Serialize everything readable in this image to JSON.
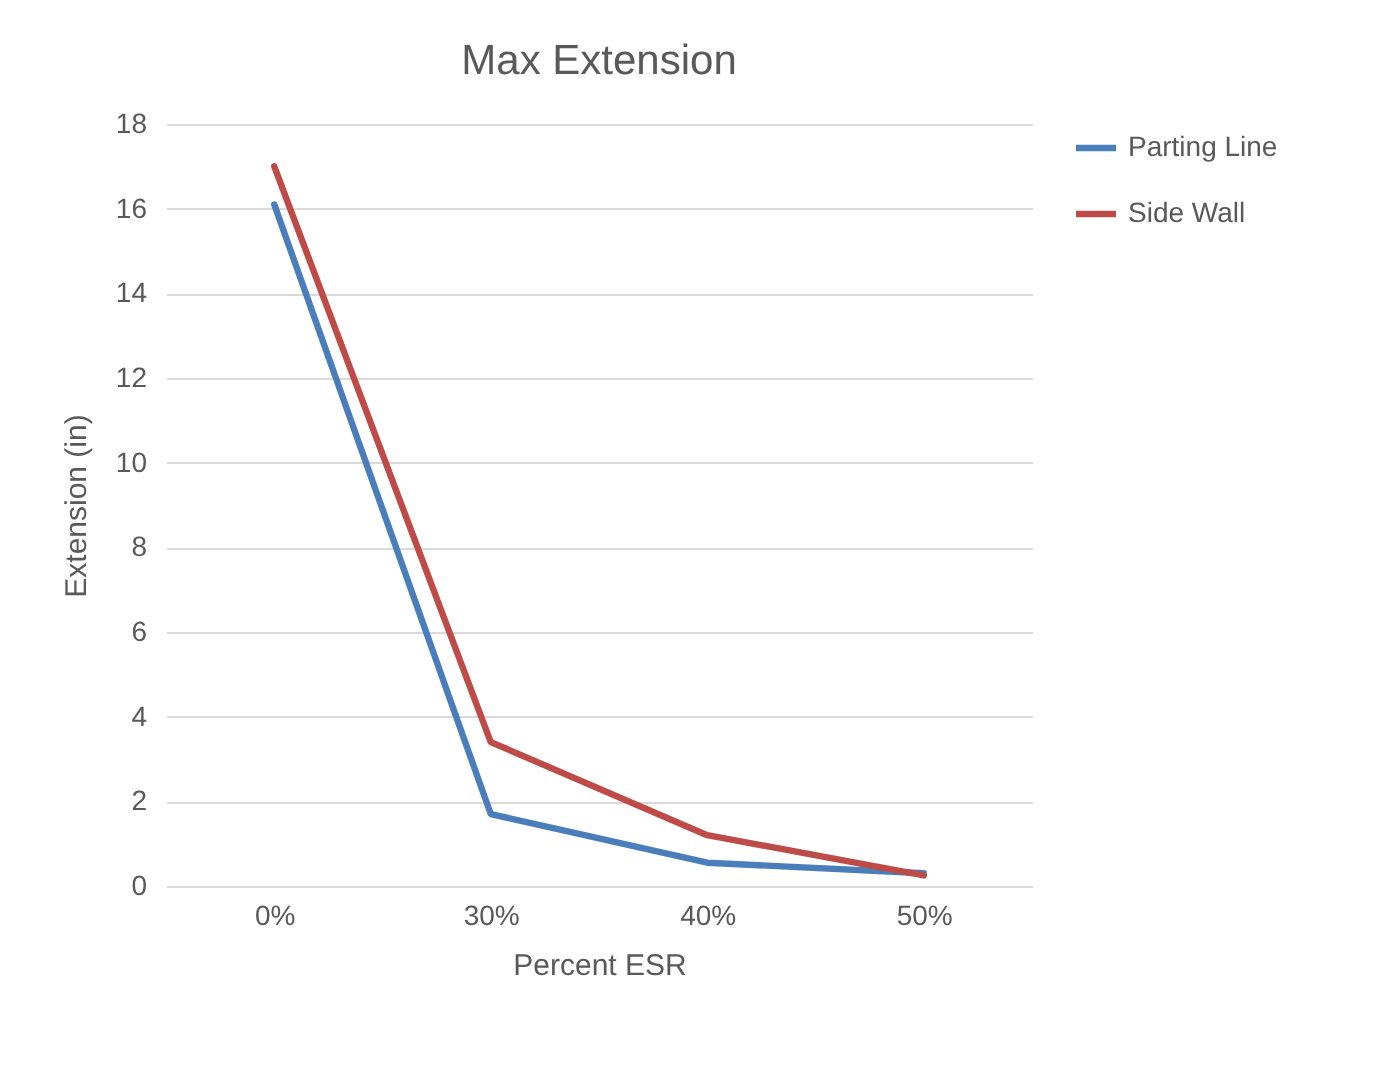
{
  "chart_data": {
    "type": "line",
    "title": "Max Extension",
    "xlabel": "Percent ESR",
    "ylabel": "Extension (in)",
    "categories": [
      "0%",
      "30%",
      "40%",
      "50%"
    ],
    "series": [
      {
        "name": "Parting Line",
        "color": "#4a7ebb",
        "values": [
          16.1,
          1.7,
          0.55,
          0.3
        ]
      },
      {
        "name": "Side Wall",
        "color": "#be4b48",
        "values": [
          17.0,
          3.4,
          1.2,
          0.25
        ]
      }
    ],
    "ylim": [
      0,
      18
    ],
    "yticks": [
      0,
      2,
      4,
      6,
      8,
      10,
      12,
      14,
      16,
      18
    ],
    "grid": "y",
    "legend": "right",
    "marker": "none",
    "line_style": "solid"
  }
}
